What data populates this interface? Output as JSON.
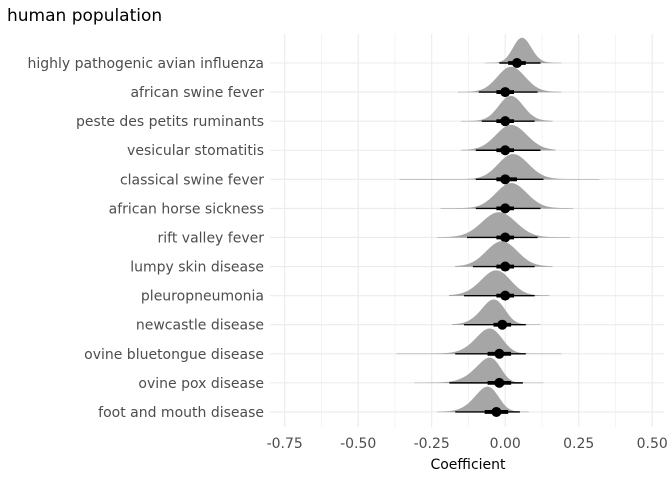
{
  "chart_data": {
    "type": "halfeye",
    "title": "human population",
    "xlabel": "Coefficient",
    "ylabel": "",
    "xlim": [
      -0.8,
      0.54
    ],
    "xticks": [
      -0.75,
      -0.5,
      -0.25,
      0.0,
      0.25,
      0.5
    ],
    "xtick_labels": [
      "-0.75",
      "-0.50",
      "-0.25",
      "0.00",
      "0.25",
      "0.50"
    ],
    "grid": true,
    "colors": {
      "density": "#a6a6a6",
      "interval": "#000000",
      "grid": "#ebebeb"
    },
    "categories": [
      "highly pathogenic avian influenza",
      "african swine fever",
      "peste des petits ruminants",
      "vesicular stomatitis",
      "classical swine fever",
      "african horse sickness",
      "rift valley fever",
      "lumpy skin disease",
      "pleuropneumonia",
      "newcastle disease",
      "ovine bluetongue disease",
      "ovine pox disease",
      "foot and mouth disease"
    ],
    "series": [
      {
        "median": 0.04,
        "q66": [
          0.01,
          0.07
        ],
        "q95": [
          -0.02,
          0.12
        ],
        "range": [
          -0.07,
          0.19
        ]
      },
      {
        "median": 0.0,
        "q66": [
          -0.03,
          0.03
        ],
        "q95": [
          -0.09,
          0.11
        ],
        "range": [
          -0.16,
          0.19
        ]
      },
      {
        "median": 0.0,
        "q66": [
          -0.03,
          0.03
        ],
        "q95": [
          -0.08,
          0.1
        ],
        "range": [
          -0.15,
          0.16
        ]
      },
      {
        "median": 0.0,
        "q66": [
          -0.03,
          0.03
        ],
        "q95": [
          -0.1,
          0.12
        ],
        "range": [
          -0.15,
          0.17
        ]
      },
      {
        "median": 0.0,
        "q66": [
          -0.03,
          0.04
        ],
        "q95": [
          -0.1,
          0.13
        ],
        "range": [
          -0.36,
          0.32
        ]
      },
      {
        "median": 0.0,
        "q66": [
          -0.03,
          0.03
        ],
        "q95": [
          -0.1,
          0.12
        ],
        "range": [
          -0.22,
          0.23
        ]
      },
      {
        "median": 0.0,
        "q66": [
          -0.03,
          0.03
        ],
        "q95": [
          -0.13,
          0.11
        ],
        "range": [
          -0.23,
          0.22
        ]
      },
      {
        "median": 0.0,
        "q66": [
          -0.03,
          0.03
        ],
        "q95": [
          -0.11,
          0.1
        ],
        "range": [
          -0.17,
          0.16
        ]
      },
      {
        "median": 0.0,
        "q66": [
          -0.03,
          0.03
        ],
        "q95": [
          -0.14,
          0.1
        ],
        "range": [
          -0.19,
          0.15
        ]
      },
      {
        "median": -0.01,
        "q66": [
          -0.04,
          0.02
        ],
        "q95": [
          -0.14,
          0.07
        ],
        "range": [
          -0.18,
          0.12
        ]
      },
      {
        "median": -0.02,
        "q66": [
          -0.06,
          0.02
        ],
        "q95": [
          -0.17,
          0.07
        ],
        "range": [
          -0.37,
          0.19
        ]
      },
      {
        "median": -0.02,
        "q66": [
          -0.06,
          0.02
        ],
        "q95": [
          -0.19,
          0.06
        ],
        "range": [
          -0.31,
          0.13
        ]
      },
      {
        "median": -0.03,
        "q66": [
          -0.07,
          0.01
        ],
        "q95": [
          -0.17,
          0.05
        ],
        "range": [
          -0.23,
          0.08
        ]
      }
    ]
  }
}
